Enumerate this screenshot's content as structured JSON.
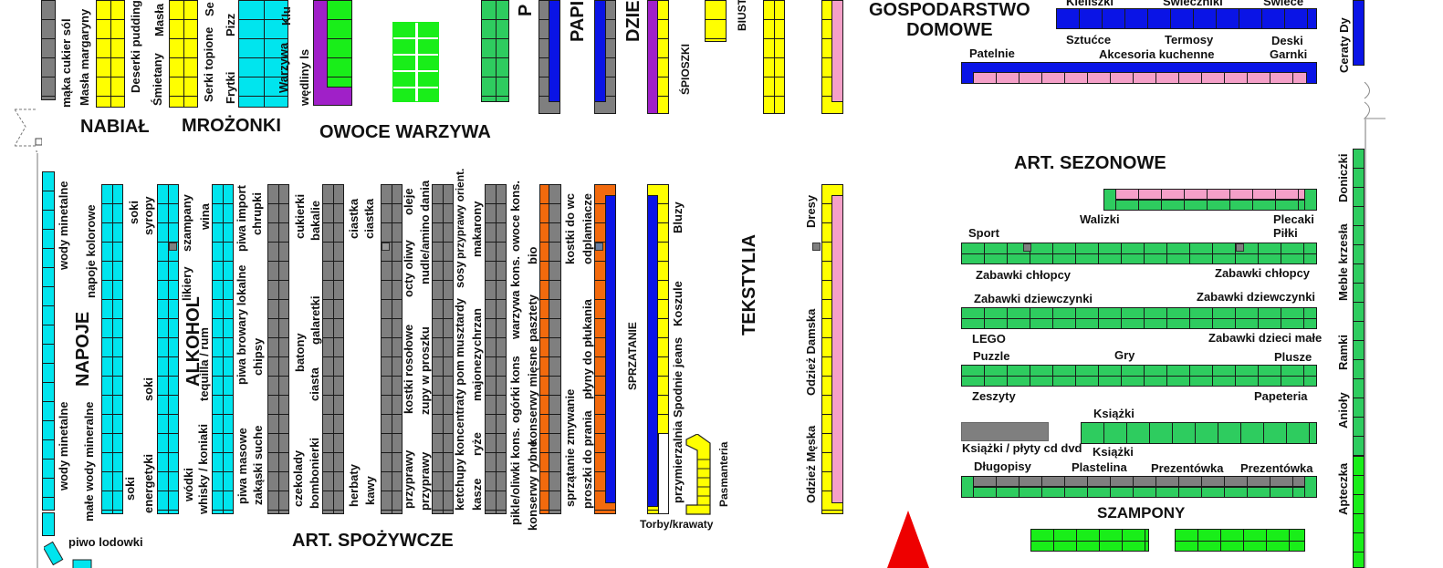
{
  "sections": {
    "nabial": "NABIAŁ",
    "mrozonki": "MROŻONKI",
    "owoce": "OWOCE WARZYWA",
    "gospodarstwo": "GOSPODARSTWO\nDOMOWE",
    "sezonowe": "ART. SEZONOWE",
    "napoje": "NAPOJE",
    "alkohol": "ALKOHOL",
    "spozywcze": "ART. SPOŻYWCZE",
    "tekstylia": "TEKSTYLIA",
    "sprzatanie": "SPRZATANIE",
    "szampony": "SZAMPONY",
    "papier": "PAPI",
    "dzieci": "DZIE",
    "p_cut": "P"
  },
  "labels": {
    "maka": "mąka cukier sól",
    "masla_margaryny": "Masła margaryny",
    "deserki": "Deserki puddingi",
    "masla": "Masła",
    "smietany": "Śmietany",
    "serki_topione": "Serki topione",
    "se": "Se",
    "pizz": "Pizz",
    "frytki": "Frytki",
    "warzywa": "Warzywa",
    "klu": "Klu",
    "wedliny": "wędliny ls",
    "spioszki": "ŚPIOSZKI",
    "biust": "BIUST",
    "kieliszki": "Kieliszki",
    "swieczniki": "Świeczniki",
    "swiece": "Świece",
    "sztucce": "Sztućce",
    "termosy": "Termosy",
    "deski": "Deski",
    "garnki": "Garnki",
    "patelnie": "Patelnie",
    "akcesoria": "Akcesoria kuchenne",
    "ceraty": "Ceraty Dy",
    "walizki": "Walizki",
    "plecaki": "Plecaki",
    "pilki": "Piłki",
    "sport": "Sport",
    "zab_chl_1": "Zabawki chłopcy",
    "zab_chl_2": "Zabawki chłopcy",
    "zab_dz_1": "Zabawki dziewczynki",
    "zab_dz_2": "Zabawki dziewczynki",
    "lego": "LEGO",
    "zab_male": "Zabawki dzieci małe",
    "puzzle": "Puzzle",
    "gry": "Gry",
    "plusze": "Plusze",
    "zeszyty": "Zeszyty",
    "papeteria": "Papeteria",
    "ksiazki_1": "Książki",
    "ksiazki_plyty": "Książki / płyty cd dvd",
    "ksiazki_2": "Książki",
    "dlugopisy": "Długopisy",
    "plastelina": "Plastelina",
    "prezentowka_1": "Prezentówka",
    "prezentowka_2": "Prezentówka",
    "doniczki": "Doniczki",
    "meble": "Meble krzesła",
    "ramki": "Ramki",
    "anioly": "Anioły",
    "apteczka": "Apteczka",
    "wody_min_top": "wody minetalne",
    "wody_min_bot": "wody minetalne",
    "male_wody": "małe wody mineralne",
    "napoje_kolorowe": "napoje kolorowe",
    "soki_a": "soki",
    "syropy": "syropy",
    "soki_b": "soki",
    "soki_c": "soki",
    "energetyki": "energetyki",
    "szampany": "szampany",
    "wina": "wina",
    "likiery": "likiery",
    "tequilla": "tequilla / rum",
    "wodki": "wódki",
    "whisky": "whisky / koniaki",
    "piwa_import": "piwa import",
    "piwa_browary": "piwa browary lokalne",
    "piwa_masowe": "piwa masowe",
    "chrupki": "chrupki",
    "chipsy": "chipsy",
    "zakaski": "zakąski suche",
    "cukierki": "cukierki",
    "batony": "batony",
    "czekolady": "czekolady",
    "bakalie": "bakalie",
    "galaretki": "galaretki",
    "ciasta": "ciasta",
    "bombonierki": "bombonierki",
    "ciastka_1": "ciastka",
    "ciastka_2": "ciastka",
    "herbaty": "herbaty",
    "kawy": "kawy",
    "oleje": "oleje",
    "octy": "octy oliwy",
    "kostki_ros": "kostki rosołowe",
    "przyprawy_1": "przyprawy",
    "nudle": "nudle/amino dania",
    "zupy": "zupy w proszku",
    "przyprawy_2": "przyprawy",
    "przyprawy_orient": "przyprawy orient.",
    "sosy": "sosy",
    "musztardy": "musztardy",
    "koncentraty": "koncentraty pom",
    "ketchupy": "ketchupy",
    "makarony": "makarony",
    "chrzan": "chrzan",
    "majonezy": "majonezy",
    "ryze": "ryże",
    "kasze": "kasze",
    "owoce_kons": "owoce kons.",
    "warzywa_kons": "warzywa kons.",
    "ogorki": "ogórki kons",
    "pikle": "pikle/oliwki kons.",
    "pasztety": "pasztety",
    "konserwy_miesne": "konserwy mięsne",
    "konserwy_rybne": "konserwy rybne",
    "bio": "bio",
    "kostki_wc": "kostki do wc",
    "sprzatanie_zmyw": "sprzątanie zmywanie",
    "proszki": "proszki do prania",
    "odplamiacze": "odplamiacze",
    "plyny": "płyny do płukania",
    "bluzy": "Bluzy",
    "koszule": "Koszule",
    "spodnie": "Spodnie jeans",
    "przymierzalnia": "przymierzalnia",
    "pasmanteria": "Pasmanteria",
    "torby": "Torby/krawaty",
    "dresy": "Dresy",
    "odziez_damska": "Odzież Damska",
    "odziez_meska": "Odzież Męska",
    "piwo_lodowki": "piwo lodowki"
  },
  "colors": {
    "cyan": "#00e5ee",
    "gray": "#7f7f7f",
    "yellow": "#ffff00",
    "green": "#2ecc5f",
    "lime": "#19ee19",
    "blue": "#0a14e6",
    "orange": "#f26a0d",
    "pink": "#f4a0c8",
    "purple": "#a020c8",
    "entrance_arrow": "#ee0000"
  },
  "icons": {
    "entrance": "entrance-arrow-icon",
    "door": "door-icon"
  }
}
